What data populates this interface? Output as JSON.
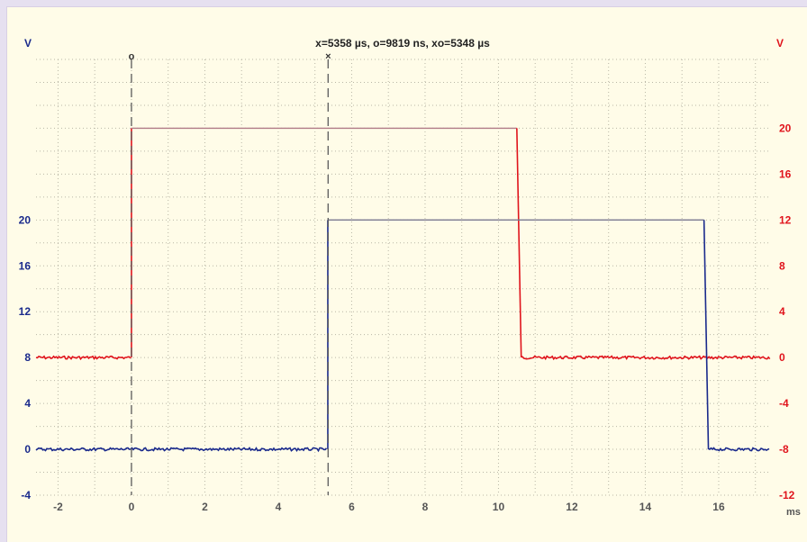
{
  "chart_data": {
    "type": "line",
    "readout": "x=5358 µs, o=9819 ns, xo=5348 µs",
    "xaxis": {
      "unit": "ms",
      "range": [
        -2.6,
        17.4
      ],
      "ticks": [
        -2,
        0,
        2,
        4,
        6,
        8,
        10,
        12,
        14,
        16
      ]
    },
    "yaxis_left": {
      "unit": "V",
      "range": [
        -4,
        34
      ],
      "ticks": [
        -4,
        0,
        4,
        8,
        12,
        16,
        20
      ]
    },
    "yaxis_right": {
      "unit": "V",
      "range": [
        -12,
        26
      ],
      "ticks": [
        -12,
        -8,
        -4,
        0,
        4,
        8,
        12,
        16,
        20
      ]
    },
    "grid": true,
    "cursors": [
      {
        "symbol": "o",
        "x": 0.0
      },
      {
        "symbol": "×",
        "x": 5.358
      }
    ],
    "series": [
      {
        "axis": "right",
        "color": "#e0141c",
        "step_color": "#b07a86",
        "x": [
          -2.6,
          0.0,
          0.0,
          10.5,
          10.62,
          17.4
        ],
        "y": [
          0,
          0,
          20,
          20,
          0,
          0
        ]
      },
      {
        "axis": "left",
        "color": "#1a2a8c",
        "step_color": "#7a7890",
        "x": [
          -2.6,
          5.35,
          5.35,
          15.6,
          15.72,
          17.4
        ],
        "y": [
          0,
          0,
          20,
          20,
          0,
          0
        ]
      }
    ]
  }
}
